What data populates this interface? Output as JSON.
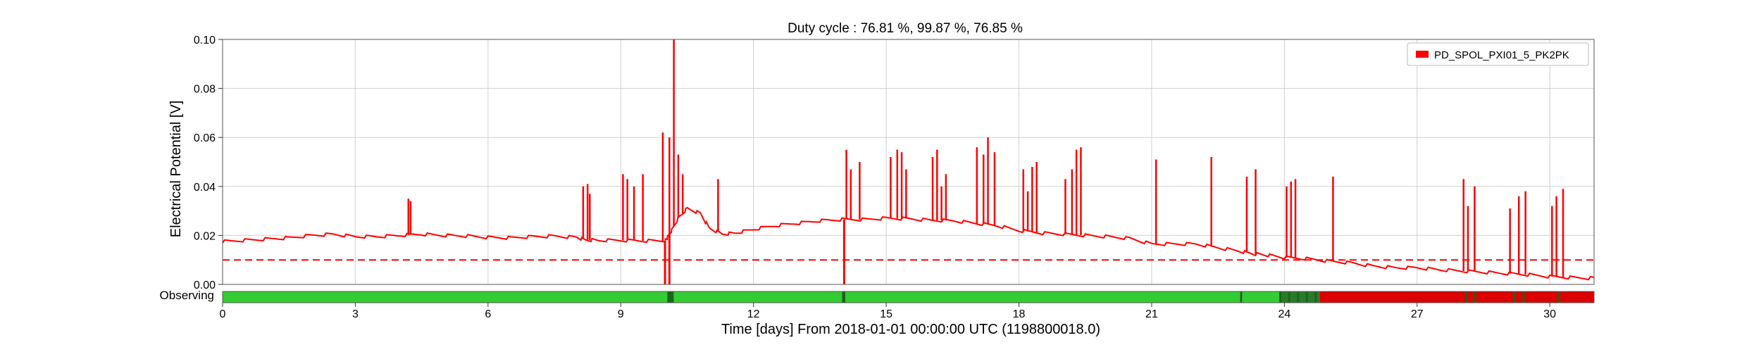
{
  "chart_data": {
    "type": "line",
    "title": "Duty cycle : 76.81 %, 99.87 %, 76.85 %",
    "xlabel": "Time [days] From 2018-01-01 00:00:00 UTC (1198800018.0)",
    "ylabel": "Electrical Potential [V]",
    "xlim": [
      0,
      31
    ],
    "ylim": [
      0,
      0.1
    ],
    "grid": true,
    "legend_position": "top-right",
    "x_ticks": [
      "0",
      "3",
      "6",
      "9",
      "12",
      "15",
      "18",
      "21",
      "24",
      "27",
      "30"
    ],
    "x_tick_values": [
      0,
      3,
      6,
      9,
      12,
      15,
      18,
      21,
      24,
      27,
      30
    ],
    "y_ticks": [
      "0.00",
      "0.02",
      "0.04",
      "0.06",
      "0.08",
      "0.10"
    ],
    "y_tick_values": [
      0,
      0.02,
      0.04,
      0.06,
      0.08,
      0.1
    ],
    "series": [
      {
        "name": "PD_SPOL_PXI01_5_PK2PK",
        "color": "#ff0000",
        "baseline_x": [
          0,
          0.5,
          1,
          1.5,
          2,
          2.5,
          3,
          3.5,
          4,
          4.5,
          5,
          5.5,
          6,
          6.5,
          7,
          7.5,
          8,
          8.2,
          8.5,
          9,
          9.5,
          10,
          10.05,
          10.15,
          10.3,
          10.5,
          10.8,
          11,
          11.3,
          11.6,
          12,
          12.5,
          13,
          13.5,
          14,
          14.5,
          15,
          15.5,
          16,
          16.5,
          17,
          17.5,
          18,
          18.5,
          19,
          19.5,
          20,
          20.5,
          21,
          21.5,
          22,
          22.5,
          23,
          23.3,
          23.6,
          24,
          24.5,
          25,
          25.5,
          26,
          26.5,
          27,
          27.5,
          28,
          28.5,
          29,
          29.5,
          30,
          30.5,
          31
        ],
        "baseline_y": [
          0.0175,
          0.018,
          0.0185,
          0.019,
          0.02,
          0.0205,
          0.0195,
          0.0195,
          0.02,
          0.0205,
          0.02,
          0.0198,
          0.0192,
          0.019,
          0.0195,
          0.0197,
          0.0192,
          0.0182,
          0.018,
          0.018,
          0.0178,
          0.0178,
          0.019,
          0.022,
          0.027,
          0.031,
          0.029,
          0.023,
          0.0205,
          0.021,
          0.0225,
          0.024,
          0.025,
          0.026,
          0.0265,
          0.0265,
          0.027,
          0.0268,
          0.0262,
          0.026,
          0.025,
          0.024,
          0.022,
          0.021,
          0.0205,
          0.02,
          0.0195,
          0.0188,
          0.0165,
          0.0165,
          0.0165,
          0.015,
          0.0135,
          0.0125,
          0.012,
          0.011,
          0.0105,
          0.0095,
          0.0088,
          0.0075,
          0.0068,
          0.0068,
          0.006,
          0.0055,
          0.005,
          0.0045,
          0.004,
          0.0032,
          0.0028,
          0.0025
        ],
        "spikes": [
          {
            "x": 4.2,
            "y": 0.035
          },
          {
            "x": 4.25,
            "y": 0.034
          },
          {
            "x": 8.15,
            "y": 0.04
          },
          {
            "x": 8.25,
            "y": 0.041
          },
          {
            "x": 8.3,
            "y": 0.037
          },
          {
            "x": 9.05,
            "y": 0.045
          },
          {
            "x": 9.15,
            "y": 0.043
          },
          {
            "x": 9.3,
            "y": 0.04
          },
          {
            "x": 9.5,
            "y": 0.045
          },
          {
            "x": 9.95,
            "y": 0.062
          },
          {
            "x": 10.1,
            "y": 0.06
          },
          {
            "x": 10.2,
            "y": 0.1
          },
          {
            "x": 10.3,
            "y": 0.053
          },
          {
            "x": 10.4,
            "y": 0.045
          },
          {
            "x": 11.2,
            "y": 0.043
          },
          {
            "x": 14.1,
            "y": 0.055
          },
          {
            "x": 14.2,
            "y": 0.047
          },
          {
            "x": 14.4,
            "y": 0.05
          },
          {
            "x": 15.1,
            "y": 0.052
          },
          {
            "x": 15.25,
            "y": 0.055
          },
          {
            "x": 15.35,
            "y": 0.054
          },
          {
            "x": 15.45,
            "y": 0.047
          },
          {
            "x": 16.05,
            "y": 0.052
          },
          {
            "x": 16.15,
            "y": 0.055
          },
          {
            "x": 16.25,
            "y": 0.04
          },
          {
            "x": 16.35,
            "y": 0.045
          },
          {
            "x": 17.05,
            "y": 0.056
          },
          {
            "x": 17.2,
            "y": 0.053
          },
          {
            "x": 17.3,
            "y": 0.06
          },
          {
            "x": 17.45,
            "y": 0.054
          },
          {
            "x": 18.1,
            "y": 0.047
          },
          {
            "x": 18.2,
            "y": 0.038
          },
          {
            "x": 18.3,
            "y": 0.048
          },
          {
            "x": 18.4,
            "y": 0.05
          },
          {
            "x": 19.05,
            "y": 0.043
          },
          {
            "x": 19.2,
            "y": 0.047
          },
          {
            "x": 19.3,
            "y": 0.055
          },
          {
            "x": 19.4,
            "y": 0.056
          },
          {
            "x": 21.1,
            "y": 0.051
          },
          {
            "x": 22.35,
            "y": 0.052
          },
          {
            "x": 23.15,
            "y": 0.044
          },
          {
            "x": 23.35,
            "y": 0.047
          },
          {
            "x": 24.05,
            "y": 0.04
          },
          {
            "x": 24.15,
            "y": 0.042
          },
          {
            "x": 24.25,
            "y": 0.043
          },
          {
            "x": 25.1,
            "y": 0.044
          },
          {
            "x": 28.05,
            "y": 0.043
          },
          {
            "x": 28.15,
            "y": 0.032
          },
          {
            "x": 28.3,
            "y": 0.04
          },
          {
            "x": 29.1,
            "y": 0.031
          },
          {
            "x": 29.3,
            "y": 0.036
          },
          {
            "x": 29.45,
            "y": 0.038
          },
          {
            "x": 30.05,
            "y": 0.032
          },
          {
            "x": 30.15,
            "y": 0.036
          },
          {
            "x": 30.3,
            "y": 0.039
          }
        ],
        "dropouts": [
          {
            "x": 10.0,
            "y": 0.0
          },
          {
            "x": 10.1,
            "y": 0.0
          },
          {
            "x": 14.05,
            "y": 0.0
          }
        ]
      }
    ],
    "threshold": {
      "y": 0.01,
      "style": "dashed",
      "color": "#ff0000"
    },
    "state_bar": {
      "label": "Observing",
      "segments": [
        {
          "x0": 0,
          "x1": 10.05,
          "color": "#33cc33"
        },
        {
          "x0": 10.05,
          "x1": 10.2,
          "color": "#1a661a"
        },
        {
          "x0": 10.2,
          "x1": 14.0,
          "color": "#33cc33"
        },
        {
          "x0": 14.0,
          "x1": 14.08,
          "color": "#1a661a"
        },
        {
          "x0": 14.08,
          "x1": 23.0,
          "color": "#33cc33"
        },
        {
          "x0": 23.0,
          "x1": 23.05,
          "color": "#1a661a"
        },
        {
          "x0": 23.05,
          "x1": 23.9,
          "color": "#33cc33"
        },
        {
          "x0": 23.9,
          "x1": 24.8,
          "color": "#2a7a2a"
        },
        {
          "x0": 24.8,
          "x1": 31,
          "color": "#dd0000"
        }
      ],
      "marks": [
        23.9,
        24.1,
        24.3,
        24.5,
        24.7,
        28.1,
        28.3,
        29.2,
        29.4,
        30.2
      ]
    }
  }
}
